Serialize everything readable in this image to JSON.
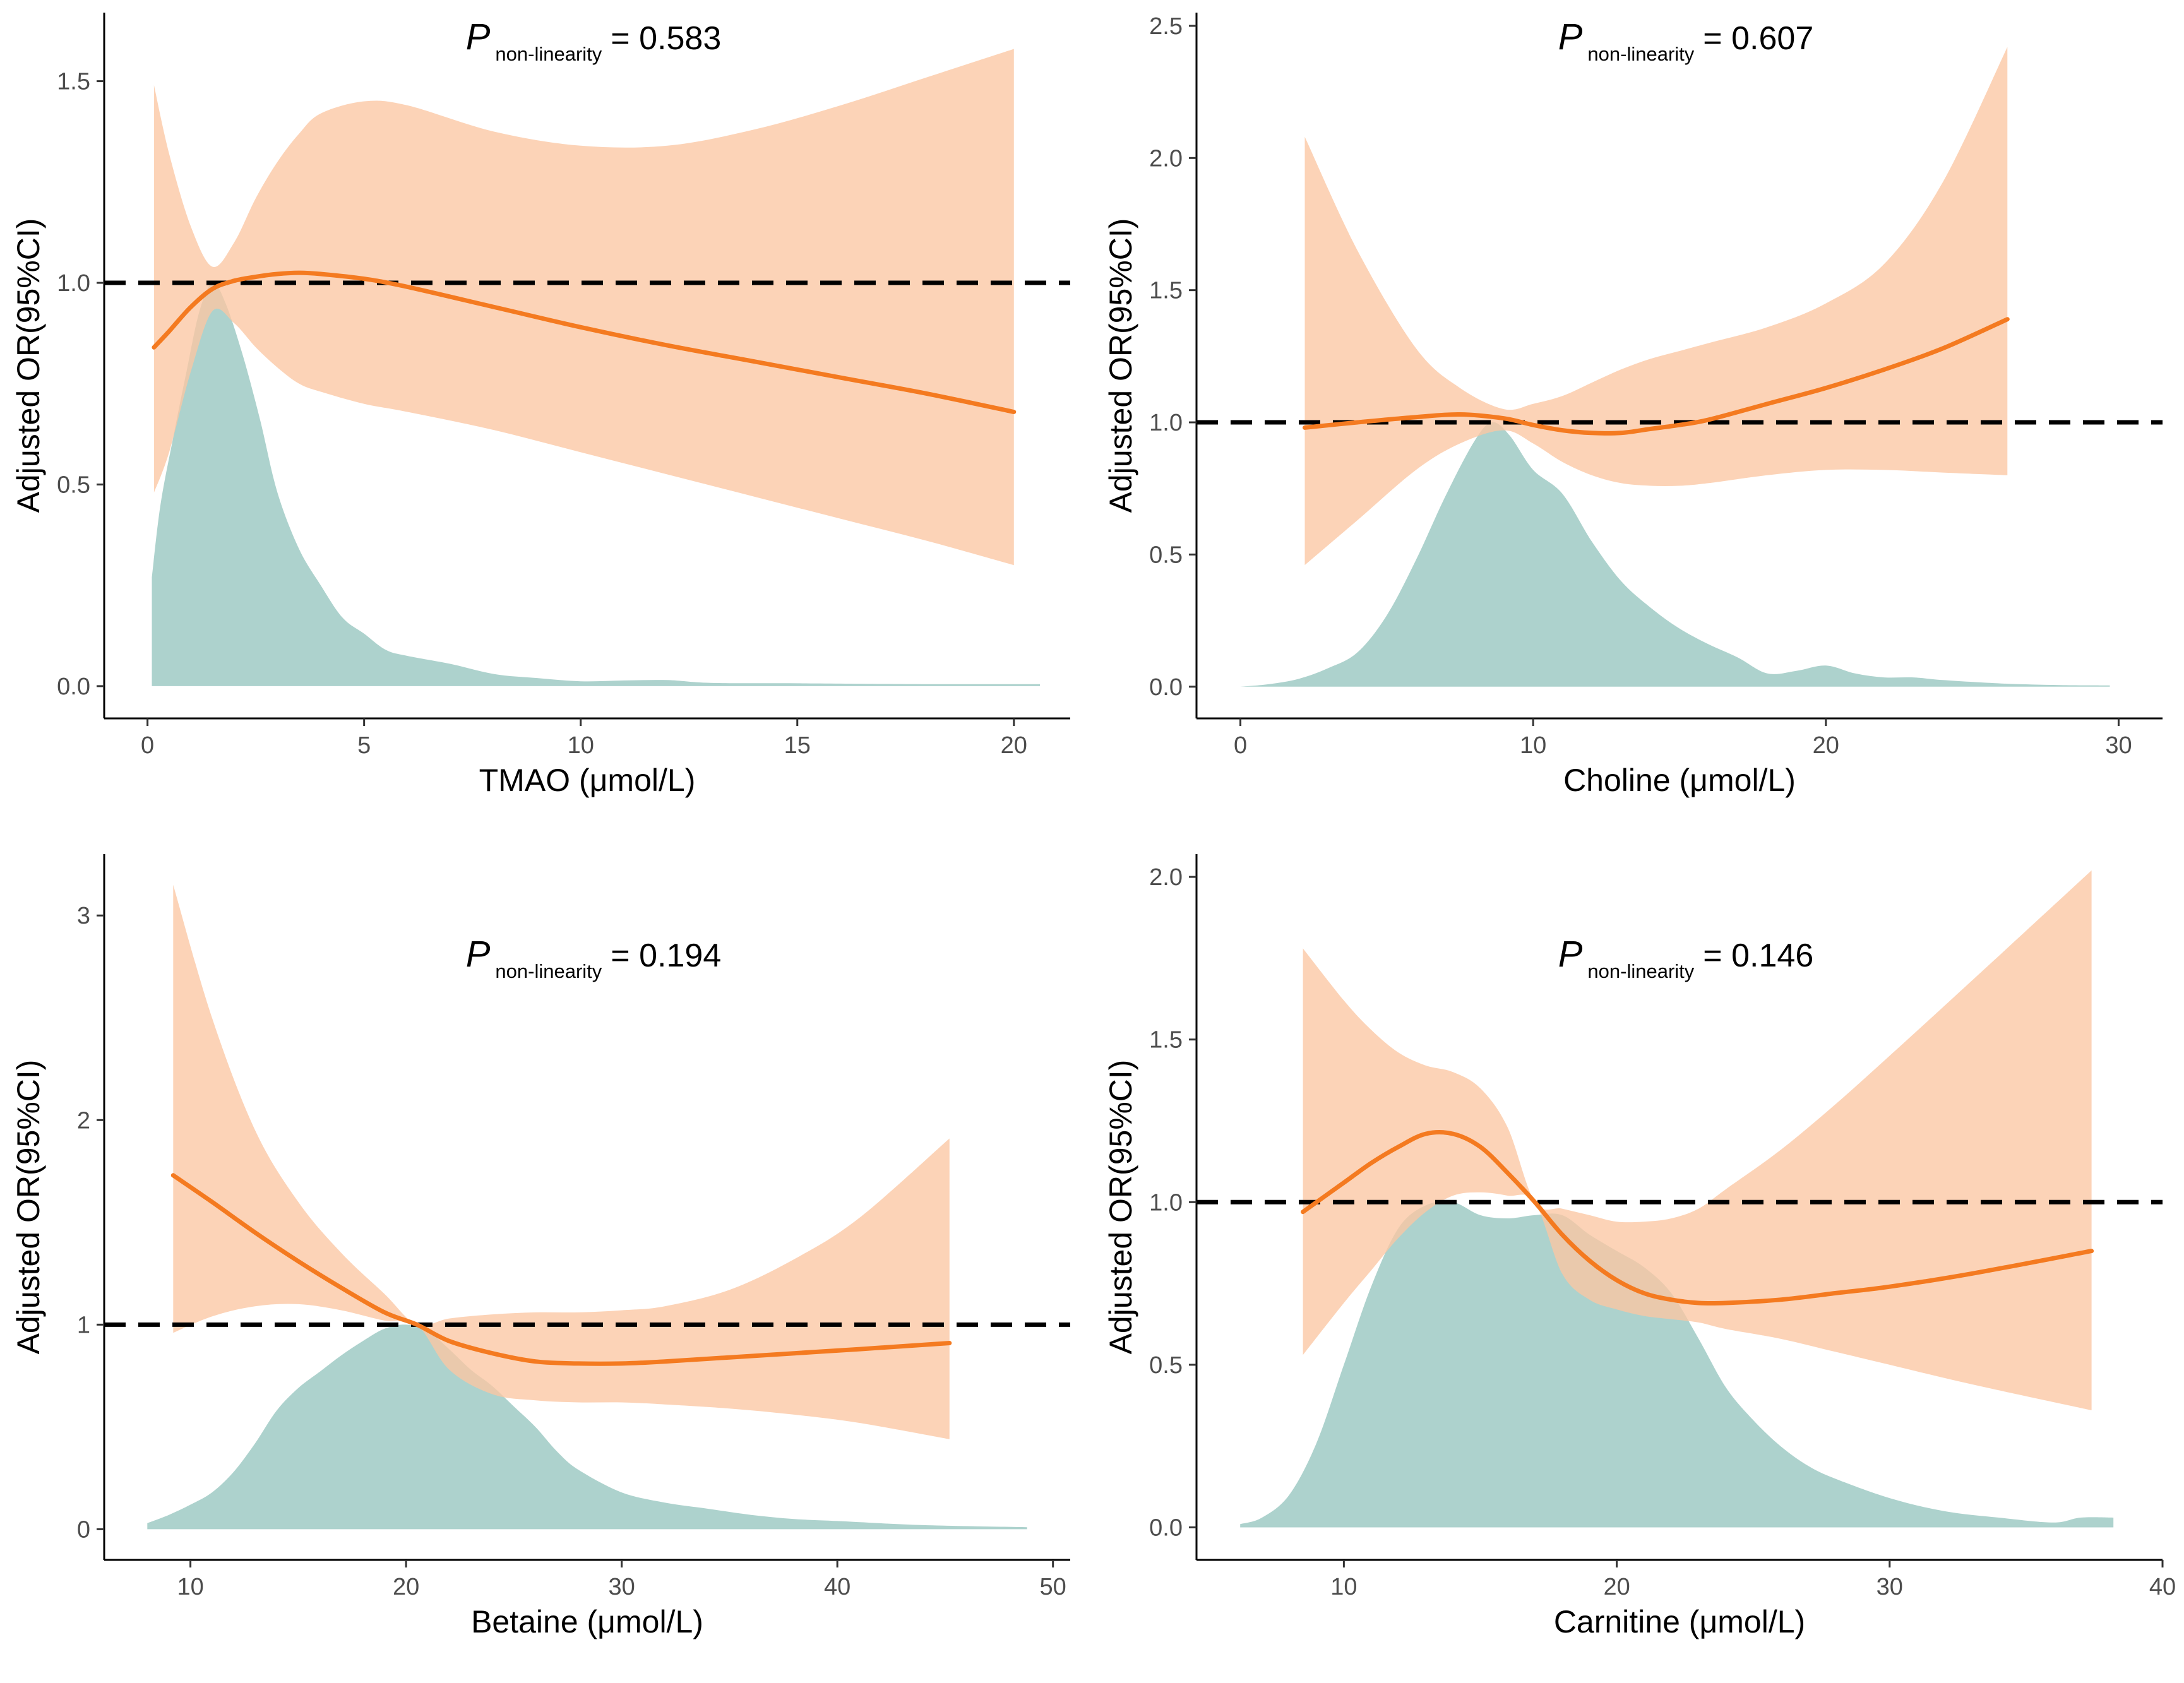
{
  "colors": {
    "ci_fill": "#fbc6a3",
    "spline_line": "#f47a20",
    "density_fill": "#99c7c1",
    "reference_line": "#000000",
    "axis": "#000000",
    "tick_text": "#4d4d4d"
  },
  "chart_data": [
    {
      "type": "area",
      "id": "tmao",
      "xlabel": "TMAO (μmol/L)",
      "ylabel": "Adjusted OR(95%CI)",
      "annotation": {
        "symbol": "P",
        "subscript": "non-linearity",
        "text": "= 0.583"
      },
      "xlim": [
        -1,
        21.3
      ],
      "ylim": [
        -0.08,
        1.67
      ],
      "xticks": [
        0,
        5,
        10,
        15,
        20
      ],
      "yticks": [
        0.0,
        0.5,
        1.0,
        1.5
      ],
      "ytick_labels": [
        "0.0",
        "0.5",
        "1.0",
        "1.5"
      ],
      "reference_y": 1.0,
      "spline": {
        "x": [
          0.15,
          0.5,
          1.0,
          1.5,
          2.0,
          2.5,
          3.0,
          3.5,
          4.0,
          5.0,
          6.0,
          8.0,
          10.0,
          12.0,
          14.0,
          16.0,
          18.0,
          20.0
        ],
        "or": [
          0.84,
          0.88,
          0.94,
          0.985,
          1.005,
          1.015,
          1.022,
          1.025,
          1.022,
          1.01,
          0.99,
          0.94,
          0.89,
          0.845,
          0.805,
          0.765,
          0.725,
          0.68
        ],
        "lower": [
          0.48,
          0.58,
          0.78,
          0.93,
          0.9,
          0.84,
          0.79,
          0.75,
          0.73,
          0.7,
          0.68,
          0.635,
          0.58,
          0.525,
          0.47,
          0.415,
          0.36,
          0.3
        ],
        "upper": [
          1.49,
          1.32,
          1.14,
          1.04,
          1.1,
          1.21,
          1.3,
          1.37,
          1.42,
          1.45,
          1.44,
          1.375,
          1.34,
          1.34,
          1.38,
          1.44,
          1.51,
          1.58
        ]
      },
      "density": {
        "x": [
          0.1,
          0.3,
          0.6,
          0.9,
          1.2,
          1.5,
          1.8,
          2.2,
          2.6,
          3.0,
          3.5,
          4.0,
          4.5,
          5.0,
          5.5,
          6.0,
          7.0,
          8.0,
          9.0,
          10.0,
          11.0,
          12.0,
          13.0,
          15.0,
          18.0,
          20.6
        ],
        "y": [
          0.27,
          0.45,
          0.62,
          0.78,
          0.93,
          1.0,
          0.95,
          0.82,
          0.66,
          0.48,
          0.34,
          0.25,
          0.17,
          0.13,
          0.09,
          0.075,
          0.055,
          0.03,
          0.02,
          0.012,
          0.014,
          0.015,
          0.008,
          0.007,
          0.005,
          0.005
        ]
      }
    },
    {
      "type": "area",
      "id": "choline",
      "xlabel": "Choline (μmol/L)",
      "ylabel": "Adjusted OR(95%CI)",
      "annotation": {
        "symbol": "P",
        "subscript": "non-linearity",
        "text": "= 0.607"
      },
      "xlim": [
        -1.5,
        31.5
      ],
      "ylim": [
        -0.12,
        2.55
      ],
      "xticks": [
        0,
        10,
        20,
        30
      ],
      "yticks": [
        0.0,
        0.5,
        1.0,
        1.5,
        2.0,
        2.5
      ],
      "ytick_labels": [
        "0.0",
        "0.5",
        "1.0",
        "1.5",
        "2.0",
        "2.5"
      ],
      "reference_y": 1.0,
      "spline": {
        "x": [
          2.2,
          4.0,
          6.0,
          7.5,
          9.0,
          10.0,
          11.0,
          12.0,
          13.0,
          14.0,
          15.0,
          16.0,
          18.0,
          20.0,
          22.0,
          24.0,
          26.2
        ],
        "or": [
          0.98,
          1.0,
          1.02,
          1.03,
          1.015,
          0.99,
          0.97,
          0.96,
          0.96,
          0.975,
          0.99,
          1.01,
          1.07,
          1.13,
          1.2,
          1.28,
          1.39
        ],
        "lower": [
          0.46,
          0.63,
          0.82,
          0.92,
          0.97,
          0.92,
          0.85,
          0.8,
          0.77,
          0.76,
          0.76,
          0.77,
          0.8,
          0.82,
          0.82,
          0.81,
          0.8
        ],
        "upper": [
          2.08,
          1.65,
          1.28,
          1.13,
          1.05,
          1.07,
          1.1,
          1.15,
          1.2,
          1.24,
          1.27,
          1.3,
          1.36,
          1.45,
          1.6,
          1.91,
          2.42
        ]
      },
      "density": {
        "x": [
          0,
          1,
          2,
          3,
          4,
          5,
          6,
          7,
          8,
          8.6,
          9.2,
          10,
          11,
          12,
          13,
          14,
          15,
          16,
          17,
          18,
          19,
          20,
          21,
          22,
          23,
          24,
          26,
          28,
          29.7
        ],
        "y": [
          0.0,
          0.01,
          0.03,
          0.07,
          0.13,
          0.27,
          0.48,
          0.72,
          0.93,
          1.0,
          0.95,
          0.82,
          0.73,
          0.55,
          0.4,
          0.3,
          0.22,
          0.16,
          0.11,
          0.05,
          0.06,
          0.08,
          0.05,
          0.035,
          0.035,
          0.025,
          0.012,
          0.006,
          0.005
        ]
      }
    },
    {
      "type": "area",
      "id": "betaine",
      "xlabel": "Betaine (μmol/L)",
      "ylabel": "Adjusted OR(95%CI)",
      "annotation": {
        "symbol": "P",
        "subscript": "non-linearity",
        "text": "= 0.194"
      },
      "xlim": [
        6,
        50.8
      ],
      "ylim": [
        -0.15,
        3.3
      ],
      "xticks": [
        10,
        20,
        30,
        40,
        50
      ],
      "yticks": [
        0,
        1,
        2,
        3
      ],
      "ytick_labels": [
        "0",
        "1",
        "2",
        "3"
      ],
      "reference_y": 1.0,
      "spline": {
        "x": [
          9.2,
          11,
          13,
          15,
          17,
          19,
          20.5,
          22,
          24,
          26,
          28,
          30,
          32,
          35,
          38,
          41,
          45.2
        ],
        "or": [
          1.73,
          1.6,
          1.45,
          1.31,
          1.18,
          1.06,
          1.0,
          0.92,
          0.86,
          0.82,
          0.81,
          0.81,
          0.82,
          0.84,
          0.86,
          0.88,
          0.91
        ],
        "lower": [
          0.96,
          1.04,
          1.09,
          1.1,
          1.07,
          1.02,
          1.0,
          0.78,
          0.66,
          0.63,
          0.62,
          0.62,
          0.61,
          0.59,
          0.56,
          0.52,
          0.44
        ],
        "upper": [
          3.15,
          2.5,
          1.95,
          1.6,
          1.35,
          1.15,
          1.0,
          1.03,
          1.05,
          1.06,
          1.06,
          1.07,
          1.09,
          1.17,
          1.32,
          1.52,
          1.91
        ]
      },
      "density": {
        "x": [
          8,
          9,
          10,
          11,
          12,
          13,
          14,
          15,
          16,
          17,
          18,
          19,
          20,
          21,
          22,
          23,
          24,
          25,
          26,
          27,
          28,
          30,
          32,
          34,
          36,
          38,
          40,
          44,
          48.8
        ],
        "y": [
          0.03,
          0.07,
          0.12,
          0.18,
          0.28,
          0.42,
          0.58,
          0.69,
          0.77,
          0.85,
          0.92,
          0.98,
          1.0,
          0.97,
          0.88,
          0.78,
          0.7,
          0.6,
          0.5,
          0.38,
          0.29,
          0.18,
          0.13,
          0.1,
          0.07,
          0.05,
          0.04,
          0.02,
          0.01
        ]
      }
    },
    {
      "type": "area",
      "id": "carnitine",
      "xlabel": "Carnitine (μmol/L)",
      "ylabel": "Adjusted OR(95%CI)",
      "annotation": {
        "symbol": "P",
        "subscript": "non-linearity",
        "text": "= 0.146"
      },
      "xlim": [
        4.6,
        40
      ],
      "ylim": [
        -0.1,
        2.07
      ],
      "xticks": [
        10,
        20,
        30,
        40
      ],
      "yticks": [
        0.0,
        0.5,
        1.0,
        1.5,
        2.0
      ],
      "ytick_labels": [
        "0.0",
        "0.5",
        "1.0",
        "1.5",
        "2.0"
      ],
      "reference_y": 1.0,
      "spline": {
        "x": [
          8.5,
          10,
          11,
          12,
          13,
          14,
          15,
          16,
          17,
          18,
          19,
          20,
          21,
          22,
          23,
          24,
          26,
          28,
          30,
          33,
          37.4
        ],
        "or": [
          0.97,
          1.06,
          1.12,
          1.17,
          1.21,
          1.21,
          1.17,
          1.09,
          1.0,
          0.9,
          0.82,
          0.76,
          0.72,
          0.7,
          0.69,
          0.69,
          0.7,
          0.72,
          0.74,
          0.78,
          0.85
        ],
        "lower": [
          0.53,
          0.69,
          0.79,
          0.89,
          0.97,
          1.02,
          1.03,
          1.02,
          1.0,
          0.78,
          0.7,
          0.67,
          0.65,
          0.64,
          0.63,
          0.61,
          0.58,
          0.54,
          0.5,
          0.44,
          0.36
        ],
        "upper": [
          1.78,
          1.62,
          1.53,
          1.46,
          1.42,
          1.4,
          1.35,
          1.23,
          1.0,
          0.98,
          0.96,
          0.94,
          0.94,
          0.95,
          0.98,
          1.04,
          1.16,
          1.3,
          1.45,
          1.68,
          2.02
        ]
      },
      "density": {
        "x": [
          6.2,
          7,
          8,
          9,
          10,
          11,
          12,
          13,
          14,
          15,
          16,
          17,
          18,
          19,
          20,
          21,
          22,
          23,
          24,
          25,
          26,
          27,
          28,
          30,
          32,
          34,
          36,
          37,
          38.2
        ],
        "y": [
          0.01,
          0.03,
          0.1,
          0.26,
          0.5,
          0.74,
          0.92,
          0.99,
          1.0,
          0.96,
          0.95,
          0.96,
          0.96,
          0.9,
          0.85,
          0.8,
          0.72,
          0.58,
          0.43,
          0.33,
          0.25,
          0.19,
          0.15,
          0.09,
          0.05,
          0.03,
          0.015,
          0.03,
          0.03
        ]
      }
    }
  ]
}
